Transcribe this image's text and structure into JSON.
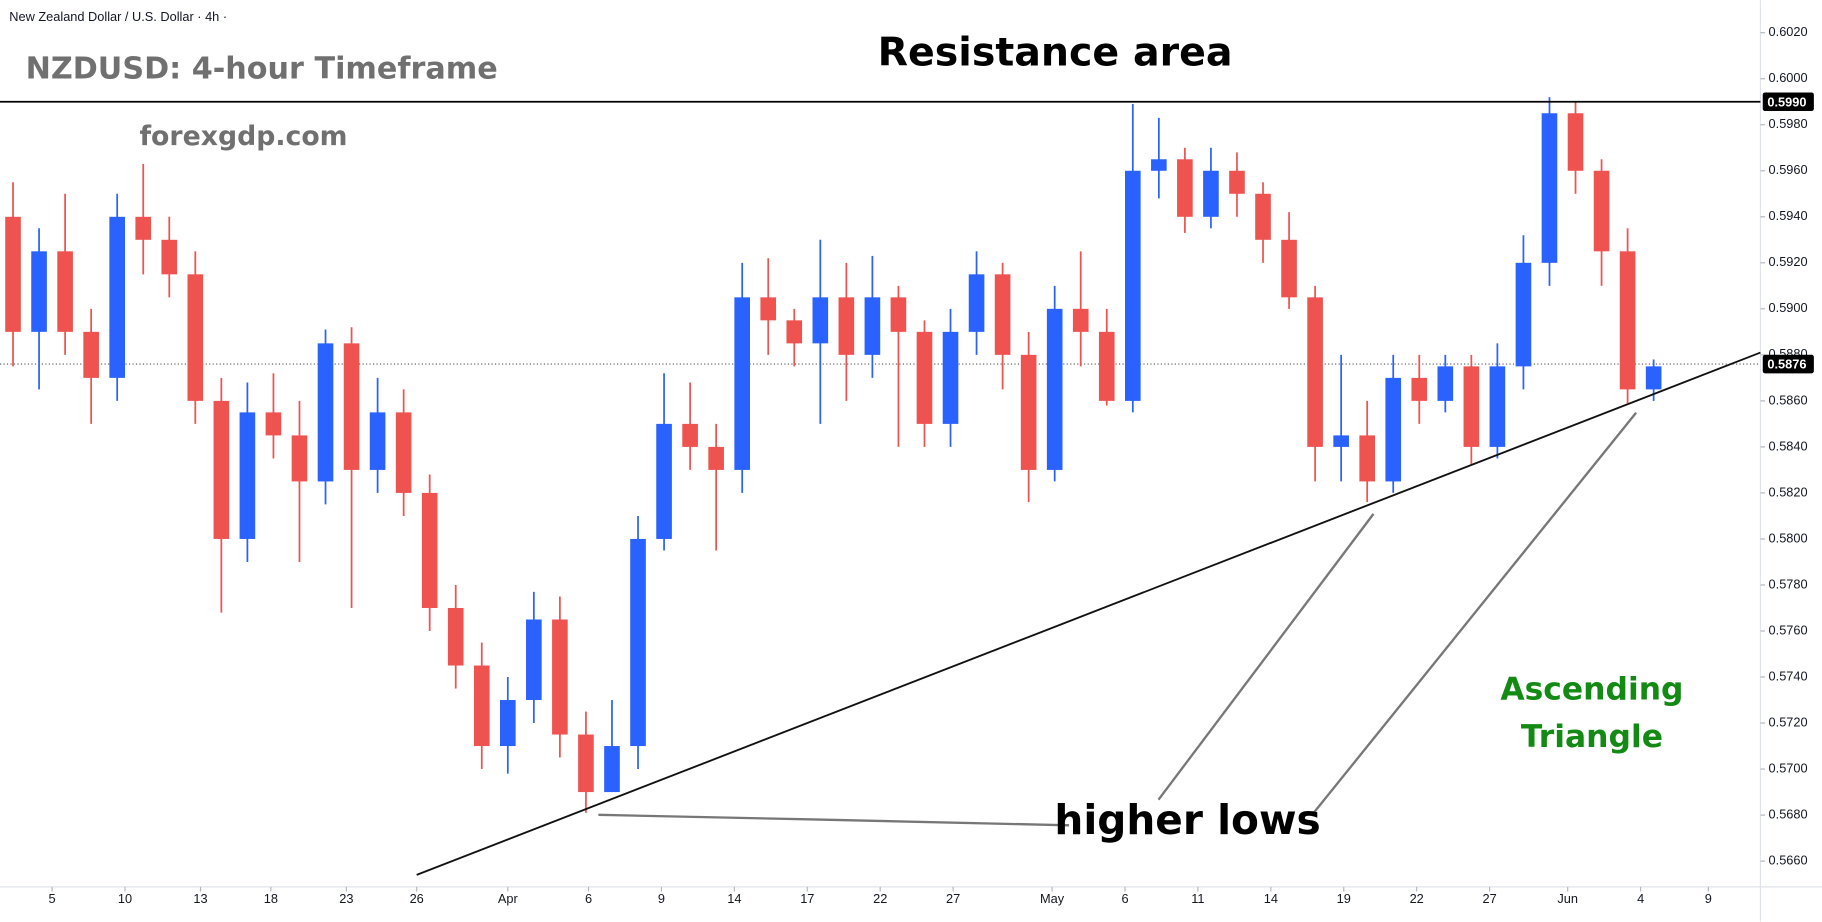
{
  "chart_data": {
    "type": "candlestick",
    "subtitle": "New Zealand Dollar / U.S. Dollar · 4h ·",
    "title": "NZDUSD: 4-hour Timeframe",
    "watermark": "forexgdp.com",
    "annotations": [
      "Resistance area",
      "higher lows",
      "Ascending",
      "Triangle"
    ],
    "up_color": "#2962ff",
    "down_color": "#ef5350",
    "open": [
      0.594,
      0.589,
      0.5925,
      0.589,
      0.587,
      0.594,
      0.593,
      0.5915,
      0.586,
      0.58,
      0.5855,
      0.5845,
      0.5825,
      0.5885,
      0.583,
      0.5855,
      0.582,
      0.577,
      0.5745,
      0.571,
      0.573,
      0.5765,
      0.5715,
      0.569,
      0.571,
      0.58,
      0.585,
      0.584,
      0.583,
      0.5905,
      0.5895,
      0.5885,
      0.5905,
      0.588,
      0.5905,
      0.589,
      0.585,
      0.589,
      0.5915,
      0.588,
      0.583,
      0.59,
      0.589,
      0.586,
      0.596,
      0.5965,
      0.594,
      0.596,
      0.595,
      0.593,
      0.5905,
      0.584,
      0.5845,
      0.5825,
      0.587,
      0.586,
      0.5875,
      0.584,
      0.5875,
      0.592,
      0.5985,
      0.596,
      0.5925,
      0.5865
    ],
    "high": [
      0.5955,
      0.5935,
      0.595,
      0.59,
      0.595,
      0.5963,
      0.594,
      0.5925,
      0.587,
      0.5868,
      0.5872,
      0.586,
      0.5891,
      0.5892,
      0.587,
      0.5865,
      0.5828,
      0.578,
      0.5755,
      0.574,
      0.5777,
      0.5775,
      0.5725,
      0.573,
      0.581,
      0.5872,
      0.5868,
      0.585,
      0.592,
      0.5922,
      0.59,
      0.593,
      0.592,
      0.5923,
      0.591,
      0.5895,
      0.59,
      0.5925,
      0.592,
      0.589,
      0.591,
      0.5925,
      0.59,
      0.5989,
      0.5983,
      0.597,
      0.597,
      0.5968,
      0.5955,
      0.5942,
      0.591,
      0.588,
      0.586,
      0.588,
      0.588,
      0.588,
      0.588,
      0.5885,
      0.5932,
      0.5992,
      0.599,
      0.5965,
      0.5935,
      0.5878
    ],
    "low": [
      0.5875,
      0.5865,
      0.588,
      0.585,
      0.586,
      0.5915,
      0.5905,
      0.585,
      0.5768,
      0.579,
      0.5835,
      0.579,
      0.5815,
      0.577,
      0.582,
      0.581,
      0.576,
      0.5735,
      0.57,
      0.5698,
      0.572,
      0.5705,
      0.5681,
      0.569,
      0.57,
      0.5795,
      0.583,
      0.5795,
      0.582,
      0.588,
      0.5875,
      0.585,
      0.586,
      0.587,
      0.584,
      0.584,
      0.584,
      0.588,
      0.5865,
      0.5816,
      0.5825,
      0.5875,
      0.5858,
      0.5855,
      0.5948,
      0.5933,
      0.5935,
      0.594,
      0.592,
      0.59,
      0.5825,
      0.5825,
      0.5816,
      0.582,
      0.585,
      0.5855,
      0.5832,
      0.5835,
      0.5865,
      0.591,
      0.595,
      0.591,
      0.5859,
      0.586
    ],
    "close": [
      0.589,
      0.5925,
      0.589,
      0.587,
      0.594,
      0.593,
      0.5915,
      0.586,
      0.58,
      0.5855,
      0.5845,
      0.5825,
      0.5885,
      0.583,
      0.5855,
      0.582,
      0.577,
      0.5745,
      0.571,
      0.573,
      0.5765,
      0.5715,
      0.569,
      0.571,
      0.58,
      0.585,
      0.584,
      0.583,
      0.5905,
      0.5895,
      0.5885,
      0.5905,
      0.588,
      0.5905,
      0.589,
      0.585,
      0.589,
      0.5915,
      0.588,
      0.583,
      0.59,
      0.589,
      0.586,
      0.596,
      0.5965,
      0.594,
      0.596,
      0.595,
      0.593,
      0.5905,
      0.584,
      0.5845,
      0.5825,
      0.587,
      0.586,
      0.5875,
      0.584,
      0.5875,
      0.592,
      0.5985,
      0.596,
      0.5925,
      0.5865,
      0.5875
    ],
    "resistance": {
      "value": 0.599,
      "label": "0.5990"
    },
    "last_price": {
      "value": 0.5876,
      "label": "0.5876"
    },
    "trendline": {
      "x": [
        15.5,
        67.1
      ],
      "y": [
        0.5654,
        0.5881
      ]
    },
    "xlim": [
      -0.5,
      67.1
    ],
    "ylim": [
      0.56488,
      0.60341
    ],
    "xticks": [
      {
        "value": 1.5,
        "label": "5"
      },
      {
        "value": 4.3,
        "label": "10"
      },
      {
        "value": 7.2,
        "label": "13"
      },
      {
        "value": 9.9,
        "label": "18"
      },
      {
        "value": 12.8,
        "label": "23"
      },
      {
        "value": 15.5,
        "label": "26"
      },
      {
        "value": 19.0,
        "label": "Apr"
      },
      {
        "value": 22.1,
        "label": "6"
      },
      {
        "value": 24.9,
        "label": "9"
      },
      {
        "value": 27.7,
        "label": "14"
      },
      {
        "value": 30.5,
        "label": "17"
      },
      {
        "value": 33.3,
        "label": "22"
      },
      {
        "value": 36.1,
        "label": "27"
      },
      {
        "value": 39.9,
        "label": "May"
      },
      {
        "value": 42.7,
        "label": "6"
      },
      {
        "value": 45.5,
        "label": "11"
      },
      {
        "value": 48.3,
        "label": "14"
      },
      {
        "value": 51.1,
        "label": "19"
      },
      {
        "value": 53.9,
        "label": "22"
      },
      {
        "value": 56.7,
        "label": "27"
      },
      {
        "value": 59.7,
        "label": "Jun"
      },
      {
        "value": 62.5,
        "label": "4"
      },
      {
        "value": 65.1,
        "label": "9"
      }
    ],
    "yticks": [
      {
        "value": 0.566,
        "label": "0.5660"
      },
      {
        "value": 0.568,
        "label": "0.5680"
      },
      {
        "value": 0.57,
        "label": "0.5700"
      },
      {
        "value": 0.572,
        "label": "0.5720"
      },
      {
        "value": 0.574,
        "label": "0.5740"
      },
      {
        "value": 0.576,
        "label": "0.5760"
      },
      {
        "value": 0.578,
        "label": "0.5780"
      },
      {
        "value": 0.58,
        "label": "0.5800"
      },
      {
        "value": 0.582,
        "label": "0.5820"
      },
      {
        "value": 0.584,
        "label": "0.5840"
      },
      {
        "value": 0.586,
        "label": "0.5860"
      },
      {
        "value": 0.588,
        "label": "0.5880"
      },
      {
        "value": 0.59,
        "label": "0.5900"
      },
      {
        "value": 0.592,
        "label": "0.5920"
      },
      {
        "value": 0.594,
        "label": "0.5940"
      },
      {
        "value": 0.596,
        "label": "0.5960"
      },
      {
        "value": 0.598,
        "label": "0.5980"
      },
      {
        "value": 0.6,
        "label": "0.6000"
      },
      {
        "value": 0.602,
        "label": "0.6020"
      }
    ]
  }
}
